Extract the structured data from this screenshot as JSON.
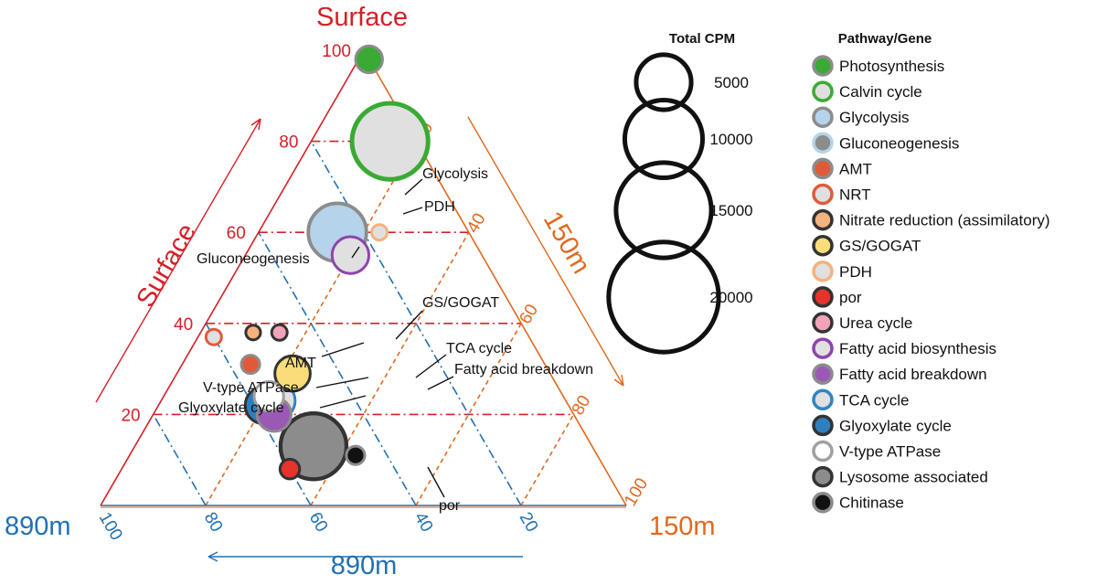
{
  "chart_data": {
    "type": "ternary-bubble",
    "axes": {
      "surface": {
        "label": "Surface",
        "color": "#d42027",
        "ticks": [
          "100",
          "80",
          "60",
          "40",
          "20"
        ]
      },
      "m150": {
        "label": "150m",
        "color": "#e0691e",
        "ticks": [
          "20",
          "40",
          "60",
          "80",
          "100"
        ]
      },
      "m890": {
        "label": "890m",
        "color": "#2270b4",
        "ticks": [
          "100",
          "80",
          "60",
          "40",
          "20"
        ]
      }
    },
    "size_legend": {
      "title": "Total CPM",
      "entries": [
        {
          "label": "5000",
          "value": 5000
        },
        {
          "label": "10000",
          "value": 10000
        },
        {
          "label": "15000",
          "value": 15000
        },
        {
          "label": "20000",
          "value": 20000
        }
      ]
    },
    "color_legend": {
      "title": "Pathway/Gene",
      "entries": [
        {
          "label": "Photosynthesis",
          "fill": "#3aaa35",
          "stroke": "#8c8c8c"
        },
        {
          "label": "Calvin cycle",
          "fill": "#e0e0e0",
          "stroke": "#3aaa35"
        },
        {
          "label": "Glycolysis",
          "fill": "#b5d3ea",
          "stroke": "#8c8c8c"
        },
        {
          "label": "Gluconeogenesis",
          "fill": "#8c8c8c",
          "stroke": "#b5d3ea"
        },
        {
          "label": "AMT",
          "fill": "#e05a3a",
          "stroke": "#8c8c8c"
        },
        {
          "label": "NRT",
          "fill": "#e0e0e0",
          "stroke": "#e05a3a"
        },
        {
          "label": "Nitrate reduction (assimilatory)",
          "fill": "#f4b27e",
          "stroke": "#333333"
        },
        {
          "label": "GS/GOGAT",
          "fill": "#f8dd7a",
          "stroke": "#333333"
        },
        {
          "label": "PDH",
          "fill": "#e0e0e0",
          "stroke": "#f4b27e"
        },
        {
          "label": "por",
          "fill": "#e8322c",
          "stroke": "#333333"
        },
        {
          "label": "Urea cycle",
          "fill": "#f2a3b9",
          "stroke": "#333333"
        },
        {
          "label": "Fatty acid biosynthesis",
          "fill": "#e0e0e0",
          "stroke": "#8e44ad"
        },
        {
          "label": "Fatty acid breakdown",
          "fill": "#9b59b6",
          "stroke": "#8c8c8c"
        },
        {
          "label": "TCA cycle",
          "fill": "#e0e0e0",
          "stroke": "#2e86c1"
        },
        {
          "label": "Glyoxylate cycle",
          "fill": "#2e7fc0",
          "stroke": "#333333"
        },
        {
          "label": "V-type ATPase",
          "fill": "#ffffff",
          "stroke": "#a0a0a0"
        },
        {
          "label": "Lysosome associated",
          "fill": "#8c8c8c",
          "stroke": "#333333"
        },
        {
          "label": "Chitinase",
          "fill": "#111111",
          "stroke": "#8c8c8c"
        }
      ]
    },
    "points": [
      {
        "name": "Photosynthesis",
        "surface": 98,
        "m150": 2,
        "m890": 0,
        "cpm": 1500,
        "fill": "#3aaa35",
        "stroke": "#8c8c8c"
      },
      {
        "name": "Calvin cycle",
        "surface": 80,
        "m150": 15,
        "m890": 5,
        "cpm": 12000,
        "fill": "#e0e0e0",
        "stroke": "#3aaa35"
      },
      {
        "name": "Glycolysis",
        "surface": 60,
        "m150": 15,
        "m890": 25,
        "cpm": 7000,
        "fill": "#b5d3ea",
        "stroke": "#8c8c8c"
      },
      {
        "name": "PDH",
        "surface": 60,
        "m150": 23,
        "m890": 17,
        "cpm": 500,
        "fill": "#e0e0e0",
        "stroke": "#f4b27e"
      },
      {
        "name": "Fatty acid biosynthesis",
        "surface": 55,
        "m150": 20,
        "m890": 25,
        "cpm": 2800,
        "fill": "#e0e0e0",
        "stroke": "#8e44ad"
      },
      {
        "name": "NRT",
        "surface": 37,
        "m150": 3,
        "m890": 60,
        "cpm": 500,
        "fill": "#e0e0e0",
        "stroke": "#e05a3a"
      },
      {
        "name": "Nitrate reduction (assimilatory)",
        "surface": 38,
        "m150": 10,
        "m890": 52,
        "cpm": 450,
        "fill": "#f4b27e",
        "stroke": "#333333"
      },
      {
        "name": "Urea cycle",
        "surface": 38,
        "m150": 15,
        "m890": 47,
        "cpm": 500,
        "fill": "#f2a3b9",
        "stroke": "#333333"
      },
      {
        "name": "AMT",
        "surface": 31,
        "m150": 13,
        "m890": 56,
        "cpm": 700,
        "fill": "#e05a3a",
        "stroke": "#8c8c8c"
      },
      {
        "name": "GS/GOGAT",
        "surface": 29,
        "m150": 22,
        "m890": 49,
        "cpm": 2600,
        "fill": "#f8dd7a",
        "stroke": "#333333"
      },
      {
        "name": "Fatty acid breakdown",
        "surface": 20,
        "m150": 23,
        "m890": 57,
        "cpm": 2400,
        "fill": "#9b59b6",
        "stroke": "#8c8c8c"
      },
      {
        "name": "Glyoxylate cycle",
        "surface": 22,
        "m150": 20,
        "m890": 58,
        "cpm": 2800,
        "fill": "#2e7fc0",
        "stroke": "#333333"
      },
      {
        "name": "TCA cycle",
        "surface": 23,
        "m150": 22,
        "m890": 55,
        "cpm": 2800,
        "fill": "#e0e0e0",
        "stroke": "#2e86c1"
      },
      {
        "name": "V-type ATPase",
        "surface": 24,
        "m150": 20,
        "m890": 56,
        "cpm": 1800,
        "fill": "#ffffff",
        "stroke": "#a0a0a0"
      },
      {
        "name": "Lysosome associated",
        "surface": 13,
        "m150": 34,
        "m890": 53,
        "cpm": 9000,
        "fill": "#8c8c8c",
        "stroke": "#333333"
      },
      {
        "name": "Chitinase",
        "surface": 11,
        "m150": 43,
        "m890": 46,
        "cpm": 700,
        "fill": "#111111",
        "stroke": "#8c8c8c"
      },
      {
        "name": "por",
        "surface": 8,
        "m150": 32,
        "m890": 60,
        "cpm": 800,
        "fill": "#e8322c",
        "stroke": "#333333"
      }
    ],
    "annotations": [
      {
        "text": "Glycolysis",
        "target": "Glycolysis"
      },
      {
        "text": "PDH",
        "target": "PDH"
      },
      {
        "text": "Gluconeogenesis",
        "target": "Glycolysis"
      },
      {
        "text": "GS/GOGAT",
        "target": "GS/GOGAT"
      },
      {
        "text": "AMT",
        "target": "AMT"
      },
      {
        "text": "TCA cycle",
        "target": "TCA cycle"
      },
      {
        "text": "Fatty acid breakdown",
        "target": "Fatty acid breakdown"
      },
      {
        "text": "V-type ATPase",
        "target": "V-type ATPase"
      },
      {
        "text": "Glyoxylate cycle",
        "target": "Glyoxylate cycle"
      },
      {
        "text": "por",
        "target": "por"
      }
    ]
  }
}
